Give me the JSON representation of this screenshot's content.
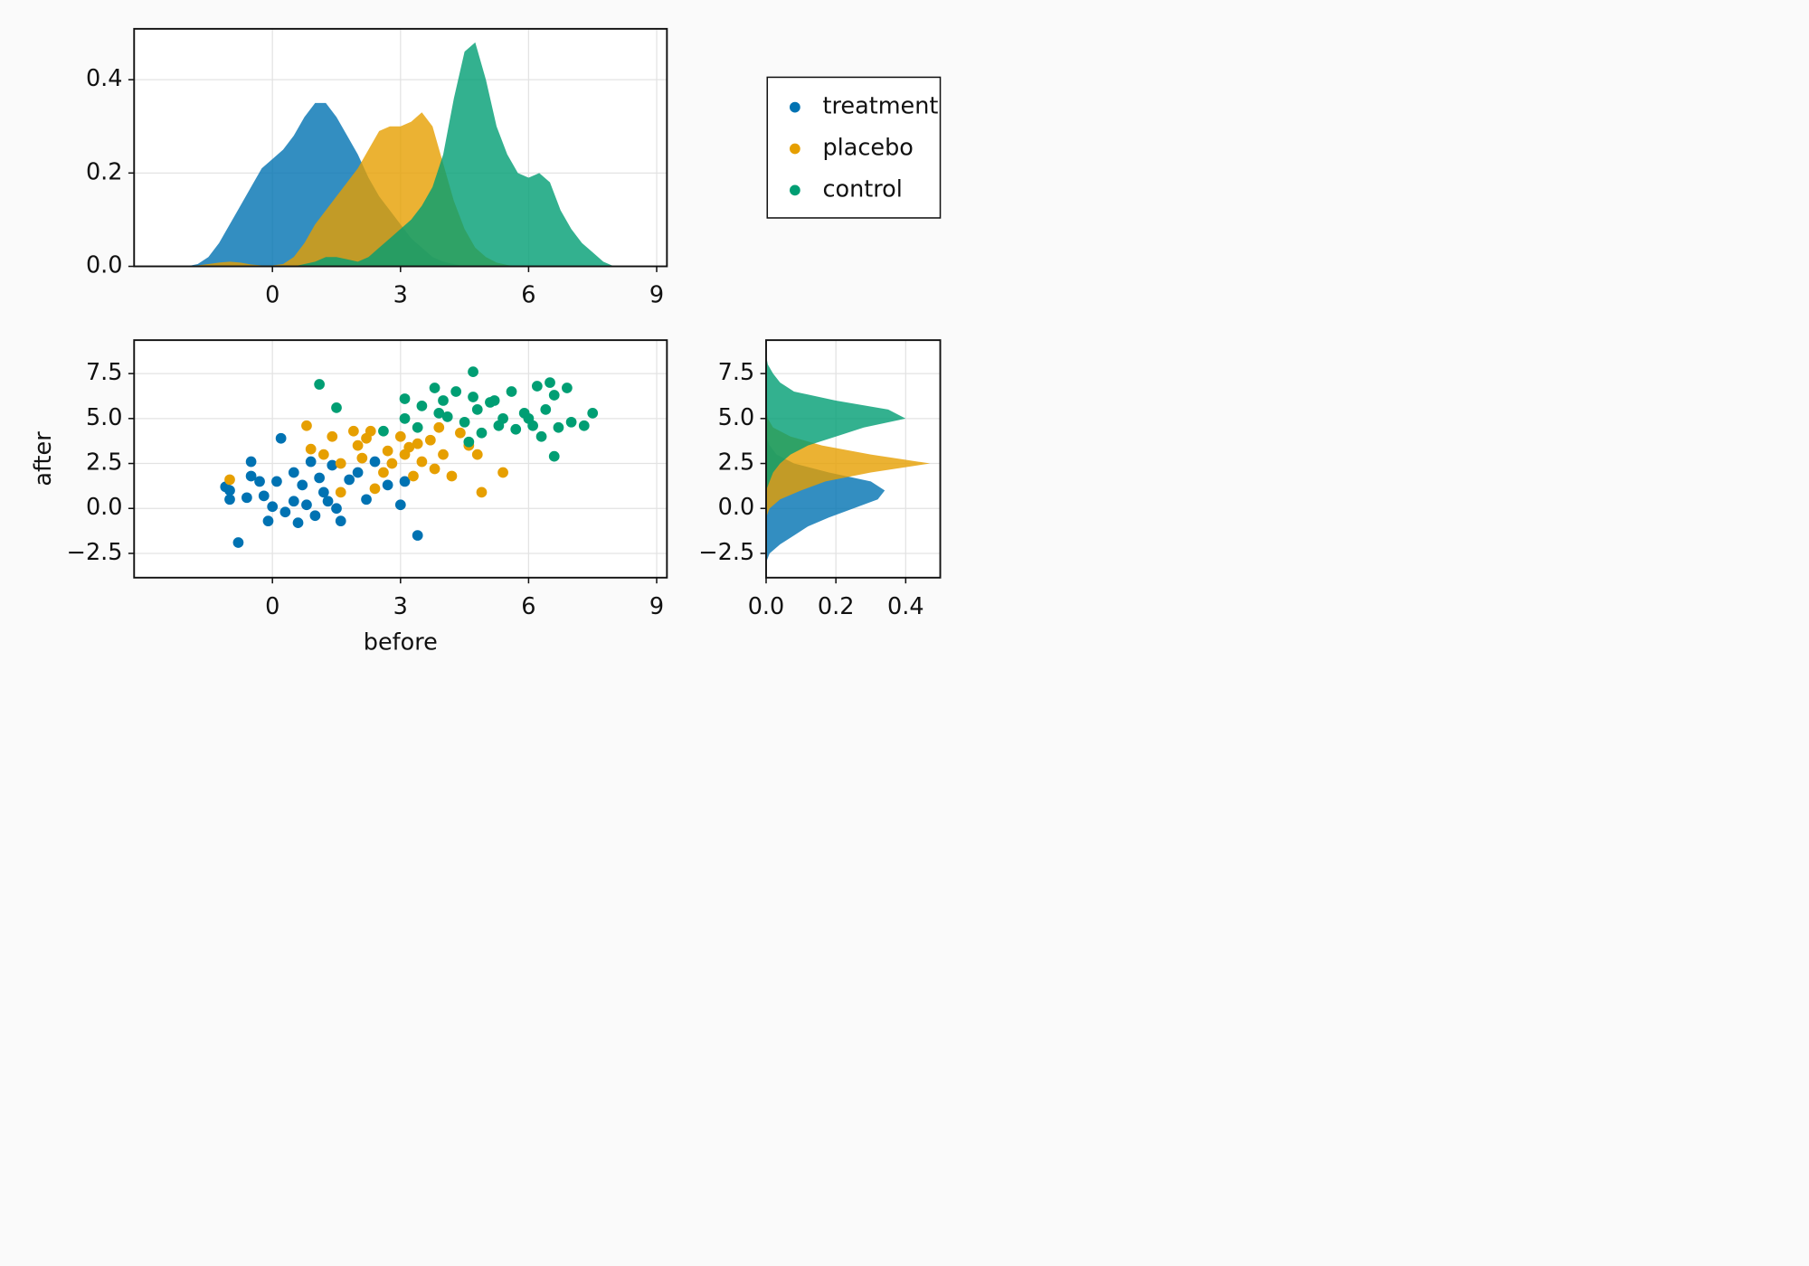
{
  "chart_data": [
    {
      "type": "density",
      "orientation": "vertical",
      "grid": true,
      "xlim": [
        -3.24,
        9.24
      ],
      "ylim": [
        0,
        0.509
      ],
      "xticks": [
        0,
        3,
        6,
        9
      ],
      "yticks": [
        {
          "value": 0,
          "label": "0.0"
        },
        0.2,
        0.4
      ],
      "x": [
        -2,
        -1.75,
        -1.5,
        -1.25,
        -1,
        -0.75,
        -0.5,
        -0.25,
        0,
        0.25,
        0.5,
        0.75,
        1,
        1.25,
        1.5,
        1.75,
        2,
        2.25,
        2.5,
        2.75,
        3,
        3.25,
        3.5,
        3.75,
        4,
        4.25,
        4.5,
        4.75,
        5,
        5.25,
        5.5,
        5.75,
        6,
        6.25,
        6.5,
        6.75,
        7,
        7.25,
        7.5,
        7.75,
        8
      ],
      "series": [
        {
          "color": "#0072b2",
          "values": [
            0,
            0.005,
            0.02,
            0.05,
            0.09,
            0.13,
            0.17,
            0.21,
            0.23,
            0.25,
            0.28,
            0.32,
            0.35,
            0.35,
            0.32,
            0.28,
            0.24,
            0.19,
            0.15,
            0.12,
            0.09,
            0.06,
            0.04,
            0.02,
            0.01,
            0.005,
            0,
            0,
            0,
            0,
            0,
            0,
            0,
            0,
            0,
            0,
            0,
            0,
            0,
            0,
            0
          ]
        },
        {
          "color": "#e69f00",
          "values": [
            0,
            0.002,
            0.005,
            0.008,
            0.01,
            0.008,
            0.004,
            0.002,
            0.002,
            0.005,
            0.02,
            0.05,
            0.09,
            0.12,
            0.15,
            0.18,
            0.21,
            0.25,
            0.29,
            0.3,
            0.3,
            0.31,
            0.33,
            0.3,
            0.22,
            0.14,
            0.08,
            0.04,
            0.02,
            0.008,
            0.003,
            0,
            0,
            0,
            0,
            0,
            0,
            0,
            0,
            0,
            0
          ]
        },
        {
          "color": "#009e73",
          "values": [
            0,
            0,
            0,
            0,
            0,
            0,
            0,
            0,
            0,
            0,
            0,
            0.005,
            0.01,
            0.02,
            0.02,
            0.015,
            0.01,
            0.02,
            0.04,
            0.06,
            0.08,
            0.1,
            0.13,
            0.17,
            0.24,
            0.36,
            0.46,
            0.48,
            0.4,
            0.3,
            0.24,
            0.2,
            0.19,
            0.2,
            0.18,
            0.12,
            0.08,
            0.05,
            0.03,
            0.01,
            0
          ]
        }
      ]
    },
    {
      "type": "scatter",
      "grid": true,
      "xlabel": "before",
      "ylabel": "after",
      "legend": "outside-top-right",
      "xlim": [
        -3.24,
        9.24
      ],
      "ylim": [
        -3.85,
        9.36
      ],
      "xticks": [
        0,
        3,
        6,
        9
      ],
      "yticks": [
        {
          "value": -2.5,
          "label": "−2.5"
        },
        {
          "value": 0,
          "label": "0.0"
        },
        2.5,
        {
          "value": 5,
          "label": "5.0"
        },
        7.5
      ],
      "series": [
        {
          "name": "treatment",
          "color": "#0072b2",
          "x": [
            -1.1,
            -1.0,
            -1.0,
            -0.8,
            -0.6,
            -0.5,
            -0.5,
            -0.3,
            -0.2,
            -0.1,
            0,
            0.1,
            0.2,
            0.3,
            0.5,
            0.6,
            0.7,
            0.8,
            0.9,
            1.0,
            1.1,
            1.2,
            1.4,
            1.5,
            1.6,
            1.8,
            2.0,
            2.2,
            2.4,
            2.7,
            3.0,
            3.1,
            3.4,
            0.5,
            1.3
          ],
          "values": [
            1.2,
            1.0,
            0.5,
            -1.9,
            0.6,
            2.6,
            1.8,
            1.5,
            0.7,
            -0.7,
            0.1,
            1.5,
            3.9,
            -0.2,
            0.4,
            -0.8,
            1.3,
            0.2,
            2.6,
            -0.4,
            1.7,
            0.9,
            2.4,
            0.0,
            -0.7,
            1.6,
            2.0,
            0.5,
            2.6,
            1.3,
            0.2,
            1.5,
            -1.5,
            2.0,
            0.4
          ]
        },
        {
          "name": "placebo",
          "color": "#e69f00",
          "x": [
            -1.0,
            0.8,
            0.9,
            1.2,
            1.4,
            1.6,
            1.6,
            1.9,
            2.0,
            2.1,
            2.3,
            2.4,
            2.6,
            2.7,
            2.8,
            3.0,
            3.1,
            3.3,
            3.4,
            3.5,
            3.7,
            3.8,
            3.9,
            4.0,
            4.2,
            4.4,
            4.6,
            4.8,
            4.9,
            5.4,
            2.2,
            3.2
          ],
          "values": [
            1.6,
            4.6,
            3.3,
            3.0,
            4.0,
            2.5,
            0.9,
            4.3,
            3.5,
            2.8,
            4.3,
            1.1,
            2.0,
            3.2,
            2.5,
            4.0,
            3.0,
            1.8,
            3.6,
            2.6,
            3.8,
            2.2,
            4.5,
            3.0,
            1.8,
            4.2,
            3.5,
            3.0,
            0.9,
            2.0,
            3.9,
            3.4
          ]
        },
        {
          "name": "control",
          "color": "#009e73",
          "x": [
            1.1,
            1.5,
            2.6,
            3.1,
            3.1,
            3.4,
            3.5,
            3.8,
            3.9,
            4.0,
            4.1,
            4.3,
            4.5,
            4.6,
            4.7,
            4.7,
            4.8,
            4.9,
            5.1,
            5.3,
            5.4,
            5.6,
            5.7,
            5.9,
            6.1,
            6.2,
            6.4,
            6.3,
            6.5,
            6.6,
            6.6,
            6.7,
            6.9,
            7.0,
            7.3,
            7.5,
            5.2,
            6.0
          ],
          "values": [
            6.9,
            5.6,
            4.3,
            6.1,
            5.0,
            4.5,
            5.7,
            6.7,
            5.3,
            6.0,
            5.1,
            6.5,
            4.8,
            3.7,
            7.6,
            6.2,
            5.5,
            4.2,
            5.9,
            4.6,
            5.0,
            6.5,
            4.4,
            5.3,
            4.6,
            6.8,
            5.5,
            4.0,
            7.0,
            6.3,
            2.9,
            4.5,
            6.7,
            4.8,
            4.6,
            5.3,
            6.0,
            5.0
          ]
        }
      ]
    },
    {
      "type": "density",
      "orientation": "horizontal",
      "grid": true,
      "xlim": [
        0,
        0.499
      ],
      "ylim": [
        -3.85,
        9.36
      ],
      "xticks": [
        {
          "value": 0,
          "label": "0.0"
        },
        0.2,
        0.4
      ],
      "yticks": [
        {
          "value": -2.5,
          "label": "−2.5"
        },
        {
          "value": 0,
          "label": "0.0"
        },
        2.5,
        {
          "value": 5,
          "label": "5.0"
        },
        7.5
      ],
      "y": [
        -3,
        -2.5,
        -2,
        -1.5,
        -1,
        -0.5,
        0,
        0.5,
        1,
        1.5,
        2,
        2.5,
        3,
        3.5,
        4,
        4.5,
        5,
        5.5,
        6,
        6.5,
        7,
        7.5,
        8,
        8.5
      ],
      "series": [
        {
          "color": "#0072b2",
          "values": [
            0,
            0.01,
            0.04,
            0.08,
            0.12,
            0.18,
            0.25,
            0.32,
            0.34,
            0.3,
            0.18,
            0.08,
            0.03,
            0.01,
            0,
            0,
            0,
            0,
            0,
            0,
            0,
            0,
            0,
            0
          ]
        },
        {
          "color": "#e69f00",
          "values": [
            0,
            0,
            0,
            0,
            0,
            0,
            0.01,
            0.04,
            0.1,
            0.17,
            0.3,
            0.47,
            0.3,
            0.16,
            0.07,
            0.02,
            0.005,
            0,
            0,
            0,
            0,
            0,
            0,
            0
          ]
        },
        {
          "color": "#009e73",
          "values": [
            0,
            0,
            0,
            0,
            0,
            0,
            0,
            0,
            0,
            0.01,
            0.02,
            0.04,
            0.07,
            0.12,
            0.2,
            0.28,
            0.4,
            0.35,
            0.2,
            0.08,
            0.04,
            0.02,
            0.005,
            0
          ]
        }
      ]
    }
  ]
}
